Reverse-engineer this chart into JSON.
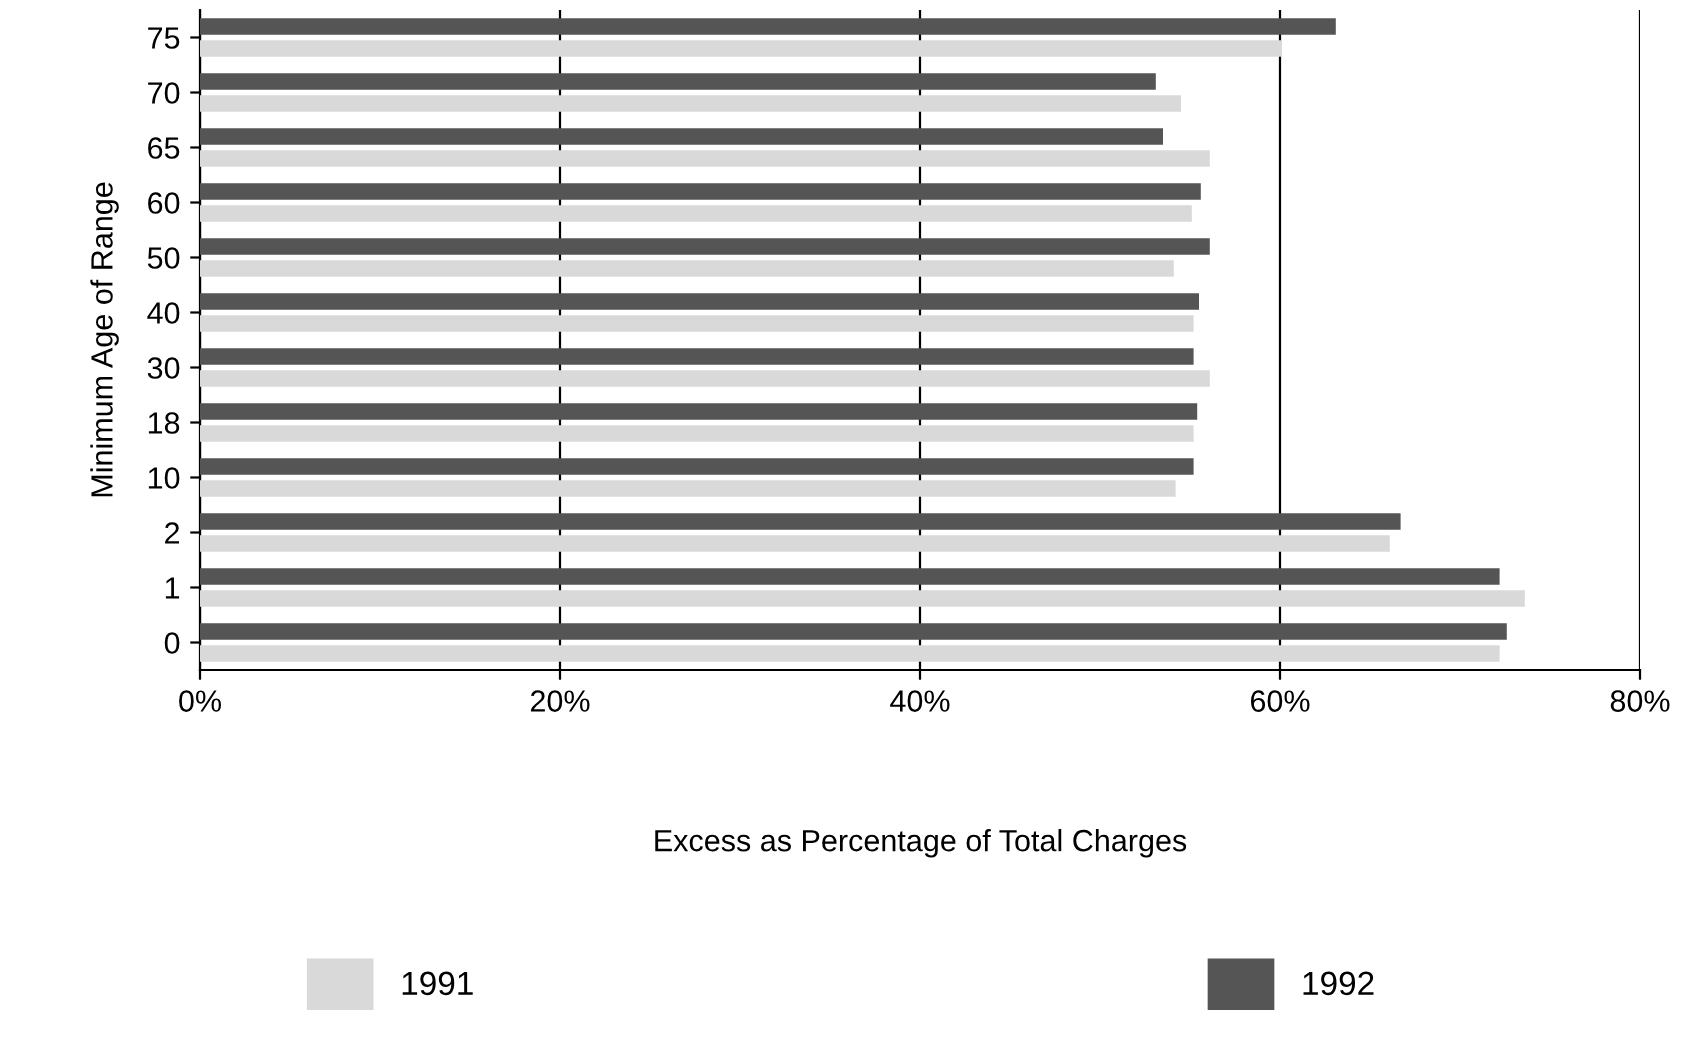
{
  "chart_data": {
    "type": "bar",
    "orientation": "horizontal",
    "xlabel": "Excess as Percentage of Total Charges",
    "ylabel": "Minimum Age of Range",
    "categories": [
      "75",
      "70",
      "65",
      "60",
      "50",
      "40",
      "30",
      "18",
      "10",
      "2",
      "1",
      "0"
    ],
    "series": [
      {
        "name": "1991",
        "color": "#d9d9d9",
        "values": [
          60.1,
          54.5,
          56.1,
          55.1,
          54.1,
          55.2,
          56.1,
          55.2,
          54.2,
          66.1,
          73.6,
          72.2
        ]
      },
      {
        "name": "1992",
        "color": "#555555",
        "values": [
          63.1,
          53.1,
          53.5,
          55.6,
          56.1,
          55.5,
          55.2,
          55.4,
          55.2,
          66.7,
          72.2,
          72.6
        ]
      }
    ],
    "xlim": [
      0,
      80
    ],
    "xticks": [
      {
        "value": 0,
        "label": "0%"
      },
      {
        "value": 20,
        "label": "20%"
      },
      {
        "value": 40,
        "label": "40%"
      },
      {
        "value": 60,
        "label": "60%"
      },
      {
        "value": 80,
        "label": "80%"
      }
    ],
    "grid": "x",
    "legend": "bottom"
  }
}
